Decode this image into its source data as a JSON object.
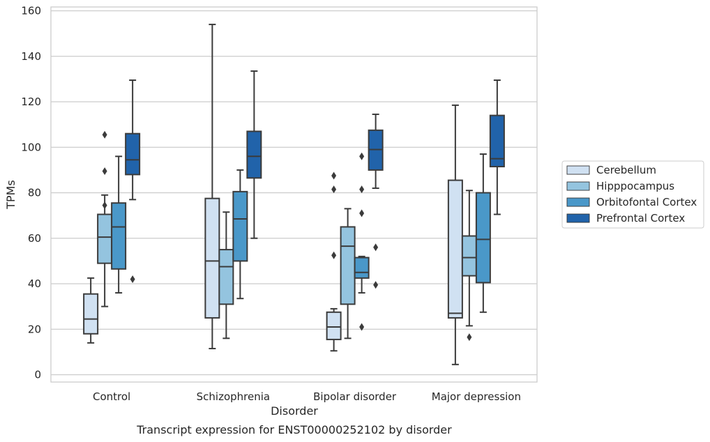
{
  "chart_data": {
    "type": "box",
    "caption": "Transcript expression for ENST00000252102 by disorder",
    "xlabel": "Disorder",
    "ylabel": "TPMs",
    "ylim": [
      -3,
      162
    ],
    "yticks": [
      0,
      20,
      40,
      60,
      80,
      100,
      120,
      140,
      160
    ],
    "grid": "horizontal",
    "legend_position": "right",
    "categories": [
      "Control",
      "Schizophrenia",
      "Bipolar disorder",
      "Major depression"
    ],
    "series": [
      {
        "name": "Cerebellum",
        "color": "#d0e1f2",
        "boxes": [
          {
            "whisker_low": 14,
            "q1": 18,
            "median": 24.5,
            "q3": 35.5,
            "whisker_high": 42.5,
            "outliers": []
          },
          {
            "whisker_low": 11.5,
            "q1": 25,
            "median": 50,
            "q3": 77.5,
            "whisker_high": 154,
            "outliers": []
          },
          {
            "whisker_low": 10.5,
            "q1": 15.5,
            "median": 21,
            "q3": 27.5,
            "whisker_high": 29,
            "outliers": [
              52.5,
              81.5,
              87.5
            ]
          },
          {
            "whisker_low": 4.5,
            "q1": 25,
            "median": 27,
            "q3": 85.5,
            "whisker_high": 118.5,
            "outliers": []
          }
        ]
      },
      {
        "name": "Hipppocampus",
        "color": "#94c4df",
        "boxes": [
          {
            "whisker_low": 30,
            "q1": 49,
            "median": 60.5,
            "q3": 70.5,
            "whisker_high": 79,
            "outliers": [
              74.5,
              89.5,
              105.5
            ]
          },
          {
            "whisker_low": 16,
            "q1": 31,
            "median": 47.5,
            "q3": 55,
            "whisker_high": 71.5,
            "outliers": []
          },
          {
            "whisker_low": 16,
            "q1": 31,
            "median": 56.5,
            "q3": 65,
            "whisker_high": 73,
            "outliers": []
          },
          {
            "whisker_low": 21.5,
            "q1": 43.5,
            "median": 51.5,
            "q3": 61,
            "whisker_high": 81,
            "outliers": [
              16.5
            ]
          }
        ]
      },
      {
        "name": "Orbitofontal Cortex",
        "color": "#4a98c9",
        "boxes": [
          {
            "whisker_low": 36,
            "q1": 46.5,
            "median": 65,
            "q3": 75.5,
            "whisker_high": 96,
            "outliers": []
          },
          {
            "whisker_low": 33.5,
            "q1": 50,
            "median": 68.5,
            "q3": 80.5,
            "whisker_high": 90,
            "outliers": []
          },
          {
            "whisker_low": 36,
            "q1": 42.5,
            "median": 45,
            "q3": 51.5,
            "whisker_high": 52,
            "outliers": [
              21,
              71,
              81.5,
              96
            ]
          },
          {
            "whisker_low": 27.5,
            "q1": 40.5,
            "median": 59.5,
            "q3": 80,
            "whisker_high": 97,
            "outliers": []
          }
        ]
      },
      {
        "name": "Prefrontal Cortex",
        "color": "#2163aa",
        "boxes": [
          {
            "whisker_low": 77,
            "q1": 88,
            "median": 94.5,
            "q3": 106,
            "whisker_high": 129.5,
            "outliers": [
              42
            ]
          },
          {
            "whisker_low": 60,
            "q1": 86.5,
            "median": 96,
            "q3": 107,
            "whisker_high": 133.5,
            "outliers": []
          },
          {
            "whisker_low": 82,
            "q1": 90,
            "median": 99,
            "q3": 107.5,
            "whisker_high": 114.5,
            "outliers": [
              39.5,
              56
            ]
          },
          {
            "whisker_low": 70.5,
            "q1": 91.5,
            "median": 95,
            "q3": 114,
            "whisker_high": 129.5,
            "outliers": []
          }
        ]
      }
    ]
  }
}
